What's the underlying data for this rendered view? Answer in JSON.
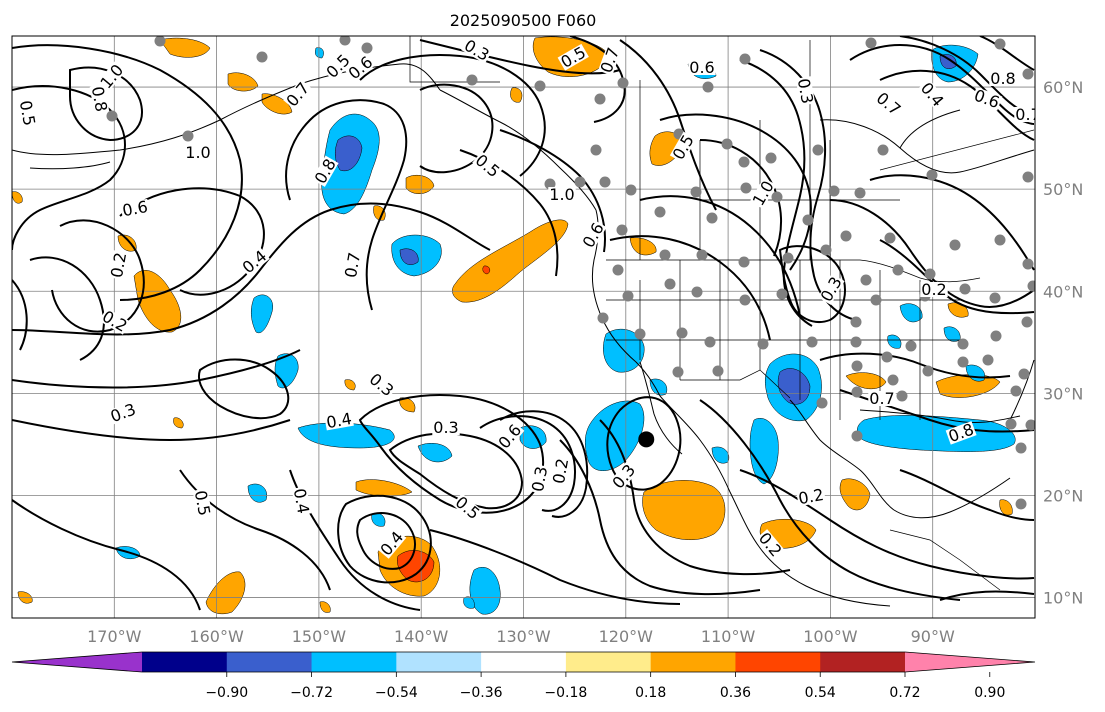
{
  "title": "2025090500 F060",
  "map": {
    "lon_range": [
      -180,
      -80
    ],
    "lat_range": [
      8,
      65
    ],
    "grid": true,
    "lon_ticks": [
      {
        "value": -170,
        "label": "170°W"
      },
      {
        "value": -160,
        "label": "160°W"
      },
      {
        "value": -150,
        "label": "150°W"
      },
      {
        "value": -140,
        "label": "140°W"
      },
      {
        "value": -130,
        "label": "130°W"
      },
      {
        "value": -120,
        "label": "120°W"
      },
      {
        "value": -110,
        "label": "110°W"
      },
      {
        "value": -100,
        "label": "100°W"
      },
      {
        "value": -90,
        "label": "90°W"
      }
    ],
    "lat_ticks": [
      {
        "value": 10,
        "label": "10°N"
      },
      {
        "value": 20,
        "label": "20°N"
      },
      {
        "value": 30,
        "label": "30°N"
      },
      {
        "value": 40,
        "label": "40°N"
      },
      {
        "value": 50,
        "label": "50°N"
      },
      {
        "value": 60,
        "label": "60°N"
      }
    ],
    "marker": {
      "lon": -118,
      "lat": 25.5
    }
  },
  "colorbar": {
    "colors": [
      "#9932cc",
      "#00008b",
      "#3a5fcd",
      "#00bfff",
      "#b0e2ff",
      "#ffffff",
      "#ffec8b",
      "#ffa500",
      "#ff4500",
      "#b22222",
      "#ff82ab"
    ],
    "tick_labels": [
      "−0.90",
      "−0.72",
      "−0.54",
      "−0.36",
      "−0.18",
      "0.18",
      "0.36",
      "0.54",
      "0.72",
      "0.90"
    ]
  },
  "contour_labels": [
    "1.0",
    "0.8",
    "0.5",
    "0.7",
    "0.5",
    "0.6",
    "1.0",
    "0.8",
    "0.6",
    "0.3",
    "0.5",
    "0.7",
    "0.6",
    "0.7",
    "0.4",
    "0.8",
    "0.6",
    "0.7",
    "0.5",
    "1.0",
    "0.6",
    "0.5",
    "1.0",
    "0.3",
    "0.4",
    "0.2",
    "0.7",
    "0.2",
    "0.3",
    "0.2",
    "0.3",
    "0.3",
    "0.4",
    "0.3",
    "0.6",
    "0.7",
    "0.8",
    "0.5",
    "0.4",
    "0.5",
    "0.3",
    "0.2",
    "0.3",
    "0.4",
    "0.2",
    "0.2"
  ]
}
